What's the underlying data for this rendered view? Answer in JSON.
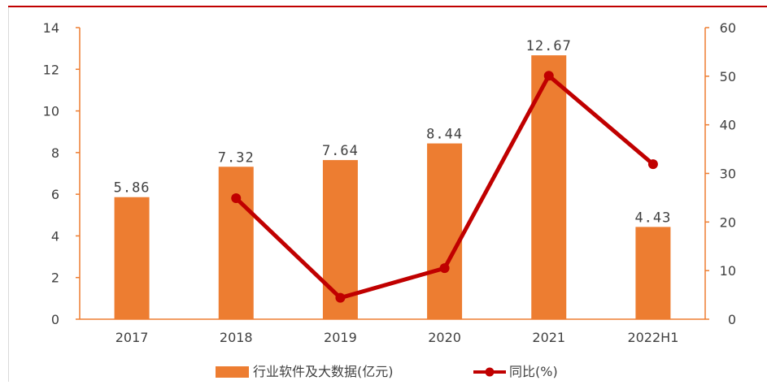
{
  "chart_data": {
    "type": "bar",
    "categories": [
      "2017",
      "2018",
      "2019",
      "2020",
      "2021",
      "2022H1"
    ],
    "series": [
      {
        "name": "行业软件及大数据(亿元)",
        "chart_type": "bar",
        "axis": "left",
        "color": "#ed7d31",
        "values": [
          5.86,
          7.32,
          7.64,
          8.44,
          12.67,
          4.43
        ],
        "labels": [
          "5.86",
          "7.32",
          "7.64",
          "8.44",
          "12.67",
          "4.43"
        ]
      },
      {
        "name": "同比(%)",
        "chart_type": "line",
        "axis": "right",
        "color": "#c00000",
        "values": [
          null,
          24.9,
          4.4,
          10.5,
          50.1,
          31.9
        ]
      }
    ],
    "y_left": {
      "min": 0,
      "max": 14,
      "ticks": [
        "0",
        "2",
        "4",
        "6",
        "8",
        "10",
        "12",
        "14"
      ]
    },
    "y_right": {
      "min": 0,
      "max": 60,
      "ticks": [
        "0",
        "10",
        "20",
        "30",
        "40",
        "50",
        "60"
      ]
    },
    "title": "",
    "xlabel": "",
    "ylabel": "",
    "grid": false,
    "legend_position": "bottom"
  }
}
